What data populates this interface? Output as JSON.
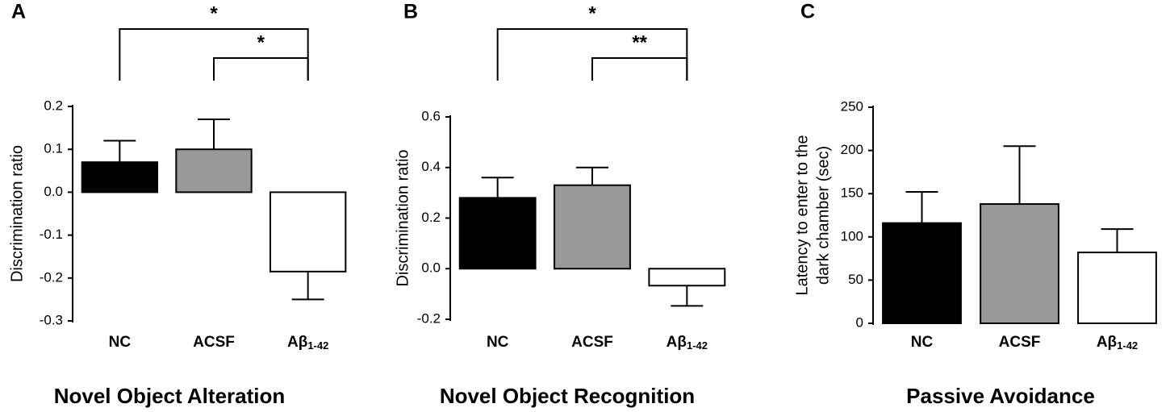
{
  "chart_data": [
    {
      "type": "bar",
      "panel": "A",
      "title": "Novel Object Alteration",
      "ylabel": [
        "Discrimination ratio"
      ],
      "categories": [
        "NC",
        "ACSF",
        "Aβ1-42"
      ],
      "values": [
        0.07,
        0.1,
        -0.185
      ],
      "errors": [
        0.05,
        0.07,
        0.065
      ],
      "colors": [
        "#000000",
        "#999999",
        "#ffffff"
      ],
      "ylim": [
        -0.3,
        0.2
      ],
      "yticks": [
        -0.3,
        -0.2,
        -0.1,
        {
          "value": 0,
          "label": "0.0"
        },
        0.1,
        0.2
      ],
      "significance": [
        {
          "groups": [
            "NC",
            "Aβ1-42"
          ],
          "label": "*"
        },
        {
          "groups": [
            "ACSF",
            "Aβ1-42"
          ],
          "label": "*"
        }
      ]
    },
    {
      "type": "bar",
      "panel": "B",
      "title": "Novel Object Recognition",
      "ylabel": [
        "Discrimination ratio"
      ],
      "categories": [
        "NC",
        "ACSF",
        "Aβ1-42"
      ],
      "values": [
        0.28,
        0.33,
        -0.067
      ],
      "errors": [
        0.08,
        0.07,
        0.08
      ],
      "colors": [
        "#000000",
        "#999999",
        "#ffffff"
      ],
      "ylim": [
        -0.2,
        0.6
      ],
      "yticks": [
        -0.2,
        {
          "value": 0,
          "label": "0.0"
        },
        0.2,
        0.4,
        0.6
      ],
      "significance": [
        {
          "groups": [
            "NC",
            "Aβ1-42"
          ],
          "label": "*"
        },
        {
          "groups": [
            "ACSF",
            "Aβ1-42"
          ],
          "label": "**"
        }
      ]
    },
    {
      "type": "bar",
      "panel": "C",
      "title": "Passive Avoidance",
      "ylabel": [
        "Latency to enter to the",
        "dark chamber (sec)"
      ],
      "categories": [
        "NC",
        "ACSF",
        "Aβ1-42"
      ],
      "values": [
        116,
        138,
        82
      ],
      "errors": [
        36,
        67,
        27
      ],
      "colors": [
        "#000000",
        "#999999",
        "#ffffff"
      ],
      "ylim": [
        0,
        250
      ],
      "yticks": [
        0,
        50,
        100,
        150,
        200,
        250
      ],
      "significance": []
    }
  ]
}
